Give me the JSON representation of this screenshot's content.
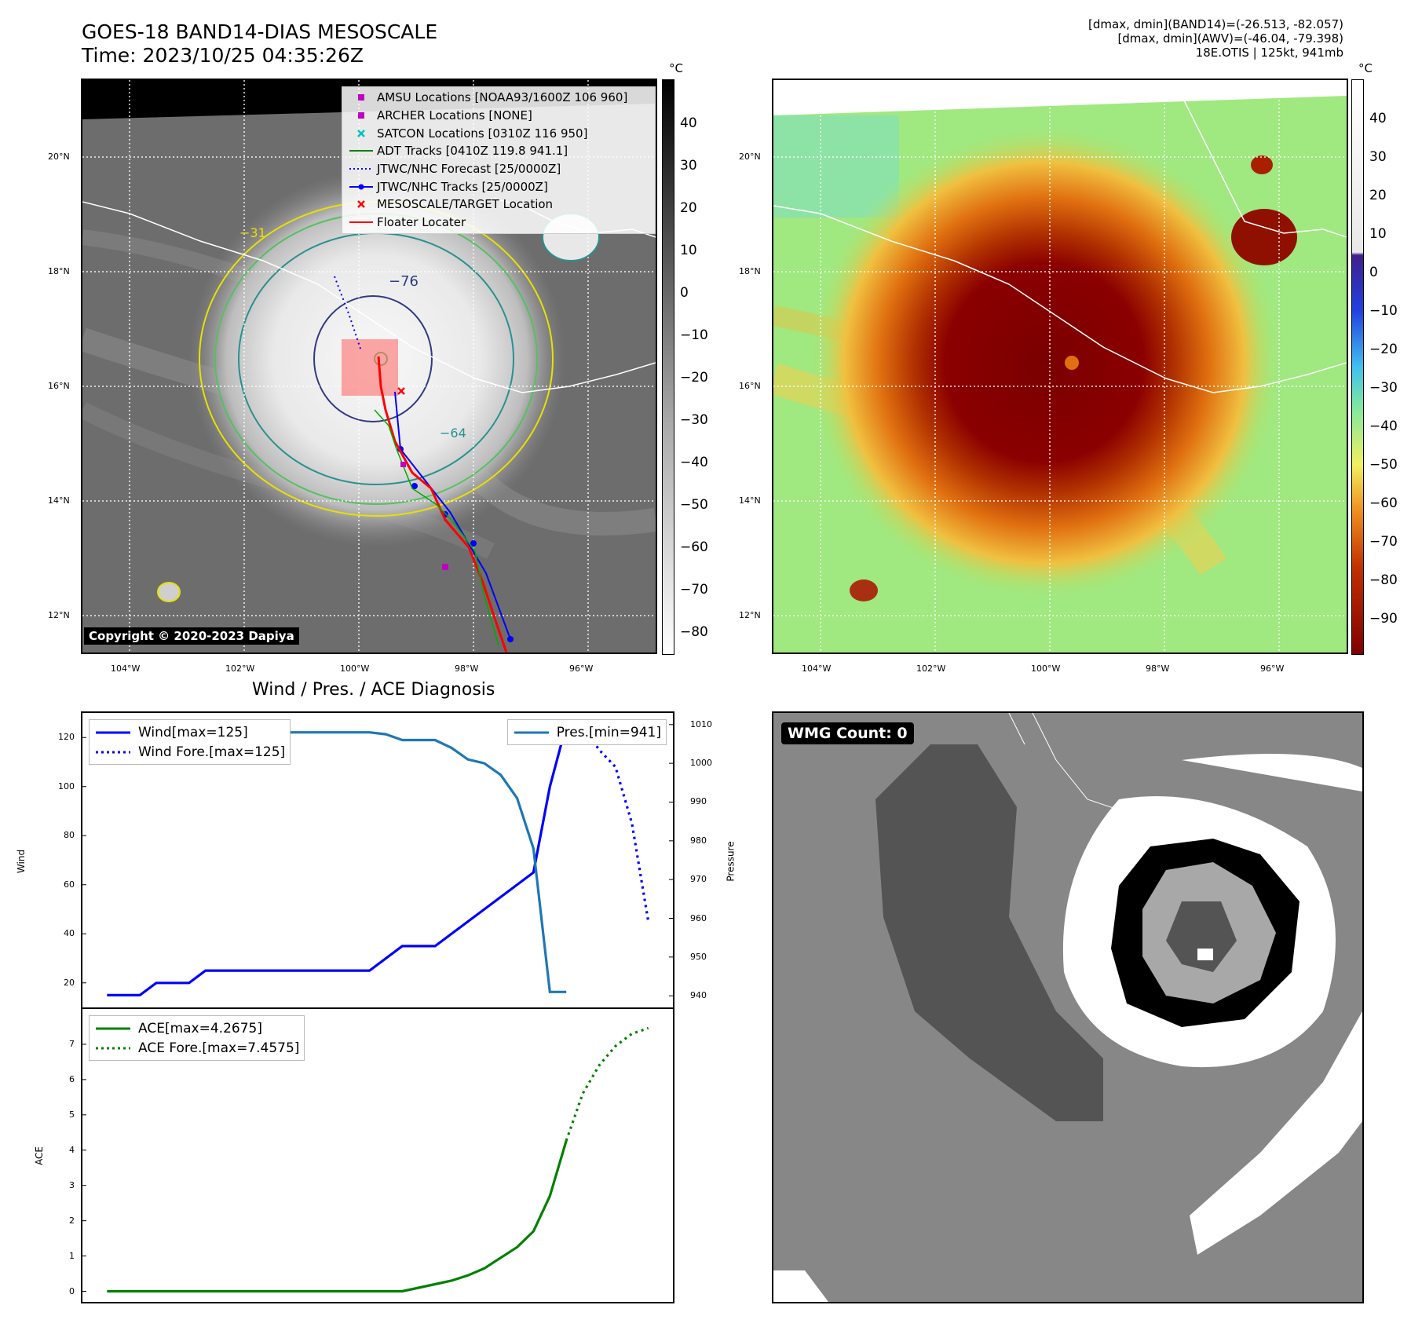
{
  "header": {
    "title_line1": "GOES-18 BAND14-DIAS MESOSCALE",
    "title_line2": "Time: 2023/10/25 04:35:26Z",
    "right_line1": "[dmax, dmin](BAND14)=(-26.513, -82.057)",
    "right_line2": "[dmax, dmin](AWV)=(-46.04, -79.398)",
    "right_line3": "18E.OTIS | 125kt, 941mb"
  },
  "map": {
    "lon_ticks": [
      "104°W",
      "102°W",
      "100°W",
      "98°W",
      "96°W"
    ],
    "lat_ticks": [
      "20°N",
      "18°N",
      "16°N",
      "14°N",
      "12°N"
    ],
    "colorbar_unit": "°C",
    "colorbar_gray_ticks": [
      "40",
      "30",
      "20",
      "10",
      "0",
      "−10",
      "−20",
      "−30",
      "−40",
      "−50",
      "−60",
      "−70",
      "−80"
    ],
    "colorbar_color_ticks": [
      "40",
      "30",
      "20",
      "10",
      "0",
      "−10",
      "−20",
      "−30",
      "−40",
      "−50",
      "−60",
      "−70",
      "−80",
      "−90"
    ],
    "contour_labels": [
      "−76",
      "−64",
      "−31"
    ],
    "copyright": "Copyright © 2020-2023 Dapiya",
    "legend": [
      {
        "label": "AMSU Locations [NOAA93/1600Z 106 960]",
        "color": "#c000c0",
        "marker": "square"
      },
      {
        "label": "ARCHER Locations [NONE]",
        "color": "#c000c0",
        "marker": "square"
      },
      {
        "label": "SATCON Locations [0310Z 116 950]",
        "color": "#00c0c0",
        "marker": "x"
      },
      {
        "label": "ADT Tracks [0410Z 119.8 941.1]",
        "color": "#008000",
        "marker": "line"
      },
      {
        "label": "JTWC/NHC Forecast [25/0000Z]",
        "color": "#0000ff",
        "marker": "dotted"
      },
      {
        "label": "JTWC/NHC Tracks [25/0000Z]",
        "color": "#0000ff",
        "marker": "dotline"
      },
      {
        "label": "MESOSCALE/TARGET Location",
        "color": "#ff0000",
        "marker": "x"
      },
      {
        "label": "Floater Locater",
        "color": "#ff0000",
        "marker": "line"
      }
    ]
  },
  "wmg": {
    "badge": "WMG Count: 0"
  },
  "chart_data": [
    {
      "type": "line",
      "title": "Wind / Pres. / ACE Diagnosis",
      "ylabel": "Wind",
      "ylabel_right": "Pressure",
      "ylim": [
        10,
        130
      ],
      "ylim_right": [
        937,
        1013
      ],
      "yticks": [
        20,
        40,
        60,
        80,
        100,
        120
      ],
      "yticks_right": [
        940,
        950,
        960,
        970,
        980,
        990,
        1000,
        1010
      ],
      "series": [
        {
          "name": "Wind[max=125]",
          "color": "#0000ff",
          "style": "solid",
          "x": [
            0,
            2,
            3,
            5,
            6,
            16,
            18,
            20,
            22,
            24,
            26,
            27,
            28,
            29
          ],
          "y": [
            15,
            15,
            20,
            20,
            25,
            25,
            35,
            35,
            45,
            55,
            65,
            100,
            125,
            125
          ]
        },
        {
          "name": "Wind Fore.[max=125]",
          "color": "#0000ff",
          "style": "dotted",
          "x": [
            29,
            30,
            31,
            32,
            33
          ],
          "y": [
            125,
            115,
            108,
            85,
            45
          ]
        },
        {
          "name": "Pres.[min=941]",
          "color": "#1f77b4",
          "style": "solid",
          "axis": "right",
          "x": [
            0,
            2,
            3,
            4,
            6,
            8,
            10,
            12,
            14,
            16,
            17,
            18,
            19,
            20,
            21,
            22,
            23,
            24,
            25,
            26,
            27,
            28
          ],
          "y": [
            1010,
            1010,
            1009,
            1009,
            1008,
            1008,
            1008,
            1008,
            1008,
            1008,
            1007.5,
            1006,
            1006,
            1006,
            1004,
            1001,
            1000,
            997,
            991,
            978,
            941,
            941
          ]
        }
      ],
      "xlim": [
        -1.5,
        34.5
      ]
    },
    {
      "type": "line",
      "ylabel": "ACE",
      "ylim": [
        -0.3,
        8.0
      ],
      "yticks": [
        0,
        1,
        2,
        3,
        4,
        5,
        6,
        7
      ],
      "series": [
        {
          "name": "ACE[max=4.2675]",
          "color": "#008000",
          "style": "solid",
          "x": [
            0,
            18,
            19,
            20,
            21,
            22,
            23,
            24,
            25,
            26,
            27,
            28
          ],
          "y": [
            0,
            0,
            0.1,
            0.2,
            0.3,
            0.45,
            0.65,
            0.95,
            1.25,
            1.7,
            2.7,
            4.2675
          ]
        },
        {
          "name": "ACE Fore.[max=7.4575]",
          "color": "#008000",
          "style": "dotted",
          "x": [
            28,
            29,
            30,
            31,
            32,
            33
          ],
          "y": [
            4.2675,
            5.6,
            6.4,
            6.95,
            7.3,
            7.4575
          ]
        }
      ],
      "xlim": [
        -1.5,
        34.5
      ]
    }
  ]
}
